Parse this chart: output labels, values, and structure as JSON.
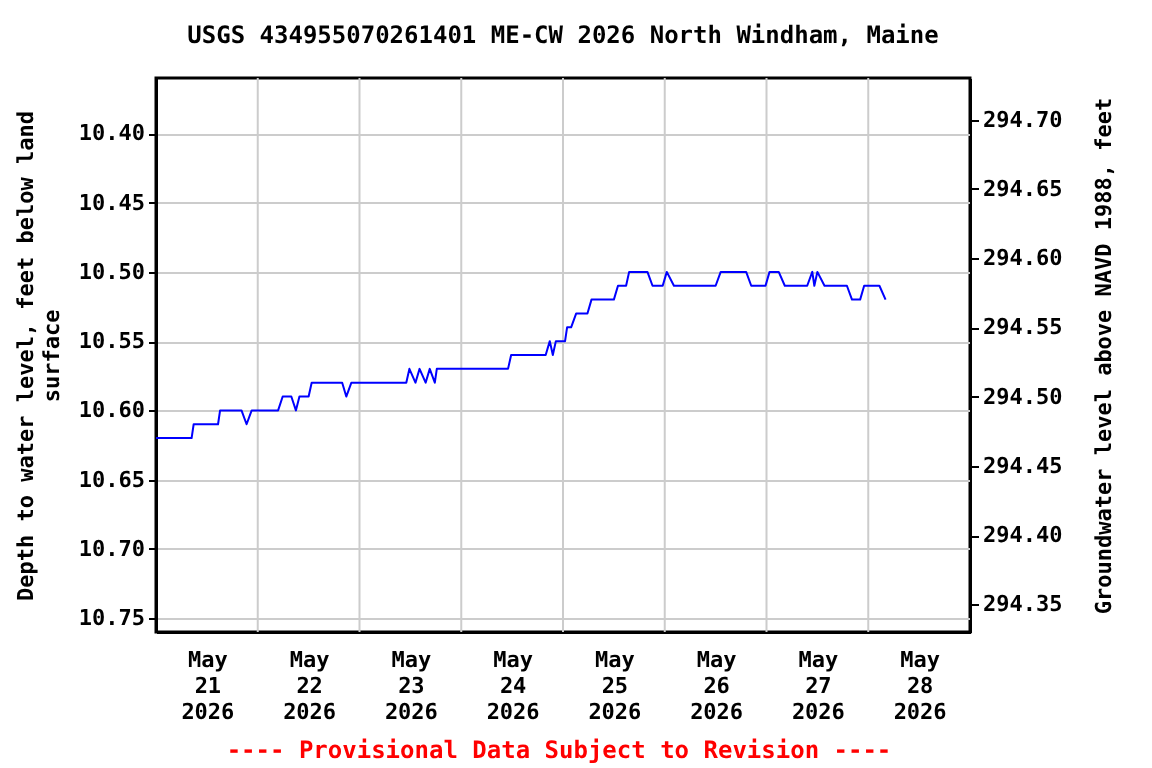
{
  "chart_data": {
    "type": "line",
    "title": "USGS 434955070261401 ME-CW 2026 North Windham, Maine",
    "ylabel": "Depth to water level, feet below land surface",
    "y2label": "Groundwater level above NAVD 1988, feet",
    "annotations": [
      "---- Provisional Data Subject to Revision ----"
    ],
    "x": [
      "2026-05-21T00:00",
      "2026-05-21T08:24",
      "2026-05-21T08:53",
      "2026-05-21T14:38",
      "2026-05-21T15:07",
      "2026-05-21T20:10",
      "2026-05-21T21:22",
      "2026-05-21T22:34",
      "2026-05-22T04:48",
      "2026-05-22T05:53",
      "2026-05-22T07:55",
      "2026-05-22T09:00",
      "2026-05-22T09:50",
      "2026-05-22T12:00",
      "2026-05-22T12:43",
      "2026-05-22T19:55",
      "2026-05-22T20:53",
      "2026-05-22T22:05",
      "2026-05-23T11:02",
      "2026-05-23T11:46",
      "2026-05-23T13:12",
      "2026-05-23T14:10",
      "2026-05-23T15:36",
      "2026-05-23T16:34",
      "2026-05-23T17:46",
      "2026-05-23T18:14",
      "2026-05-24T11:02",
      "2026-05-24T11:46",
      "2026-05-24T19:55",
      "2026-05-24T20:53",
      "2026-05-24T21:36",
      "2026-05-24T22:19",
      "2026-05-25T00:29",
      "2026-05-25T00:58",
      "2026-05-25T01:55",
      "2026-05-25T03:07",
      "2026-05-25T05:46",
      "2026-05-25T06:43",
      "2026-05-25T12:00",
      "2026-05-25T12:58",
      "2026-05-25T14:53",
      "2026-05-25T15:36",
      "2026-05-25T19:55",
      "2026-05-25T21:07",
      "2026-05-25T23:31",
      "2026-05-26T00:29",
      "2026-05-26T02:10",
      "2026-05-26T12:00",
      "2026-05-26T13:12",
      "2026-05-26T19:12",
      "2026-05-26T20:24",
      "2026-05-26T23:46",
      "2026-05-27T00:43",
      "2026-05-27T02:53",
      "2026-05-27T04:19",
      "2026-05-27T09:36",
      "2026-05-27T10:48",
      "2026-05-27T11:17",
      "2026-05-27T12:00",
      "2026-05-27T13:41",
      "2026-05-27T18:58",
      "2026-05-27T20:10",
      "2026-05-27T22:05",
      "2026-05-27T23:02",
      "2026-05-28T02:38",
      "2026-05-28T04:05"
    ],
    "series": [
      {
        "color": "#0000ff",
        "axis": "y",
        "values": [
          10.62,
          10.62,
          10.61,
          10.61,
          10.6,
          10.6,
          10.61,
          10.6,
          10.6,
          10.59,
          10.59,
          10.6,
          10.59,
          10.59,
          10.58,
          10.58,
          10.59,
          10.58,
          10.58,
          10.57,
          10.58,
          10.57,
          10.58,
          10.57,
          10.58,
          10.57,
          10.57,
          10.56,
          10.56,
          10.55,
          10.56,
          10.55,
          10.55,
          10.54,
          10.54,
          10.53,
          10.53,
          10.52,
          10.52,
          10.51,
          10.51,
          10.5,
          10.5,
          10.51,
          10.51,
          10.5,
          10.51,
          10.51,
          10.5,
          10.5,
          10.51,
          10.51,
          10.5,
          10.5,
          10.51,
          10.51,
          10.5,
          10.51,
          10.5,
          10.51,
          10.51,
          10.52,
          10.52,
          10.51,
          10.51,
          10.52
        ]
      }
    ],
    "xlim": [
      "2026-05-21",
      "2026-05-29"
    ],
    "xticks": [
      {
        "value": "2026-05-21T12:00",
        "label": "May 21 2026"
      },
      {
        "value": "2026-05-22T12:00",
        "label": "May 22 2026"
      },
      {
        "value": "2026-05-23T12:00",
        "label": "May 23 2026"
      },
      {
        "value": "2026-05-24T12:00",
        "label": "May 24 2026"
      },
      {
        "value": "2026-05-25T12:00",
        "label": "May 25 2026"
      },
      {
        "value": "2026-05-26T12:00",
        "label": "May 26 2026"
      },
      {
        "value": "2026-05-27T12:00",
        "label": "May 27 2026"
      },
      {
        "value": "2026-05-28T12:00",
        "label": "May 28 2026"
      },
      {
        "value": "2026-05-22",
        "label": null
      },
      {
        "value": "2026-05-23",
        "label": null
      },
      {
        "value": "2026-05-24",
        "label": null
      },
      {
        "value": "2026-05-25",
        "label": null
      },
      {
        "value": "2026-05-26",
        "label": null
      },
      {
        "value": "2026-05-27",
        "label": null
      },
      {
        "value": "2026-05-28",
        "label": null
      }
    ],
    "ylim": [
      10.76,
      10.36
    ],
    "yticks": [
      {
        "value": 10.4,
        "label": "10.40"
      },
      {
        "value": 10.45,
        "label": "10.45"
      },
      {
        "value": 10.5,
        "label": "10.50"
      },
      {
        "value": 10.55,
        "label": "10.55"
      },
      {
        "value": 10.6,
        "label": "10.60"
      },
      {
        "value": 10.65,
        "label": "10.65"
      },
      {
        "value": 10.7,
        "label": "10.70"
      },
      {
        "value": 10.75,
        "label": "10.75"
      }
    ],
    "y2lim": [
      294.33,
      294.73
    ],
    "y2ticks": [
      {
        "value": 294.35,
        "label": "294.35"
      },
      {
        "value": 294.4,
        "label": "294.40"
      },
      {
        "value": 294.45,
        "label": "294.45"
      },
      {
        "value": 294.5,
        "label": "294.50"
      },
      {
        "value": 294.55,
        "label": "294.55"
      },
      {
        "value": 294.6,
        "label": "294.60"
      },
      {
        "value": 294.65,
        "label": "294.65"
      },
      {
        "value": 294.7,
        "label": "294.70"
      }
    ],
    "grid": true
  }
}
